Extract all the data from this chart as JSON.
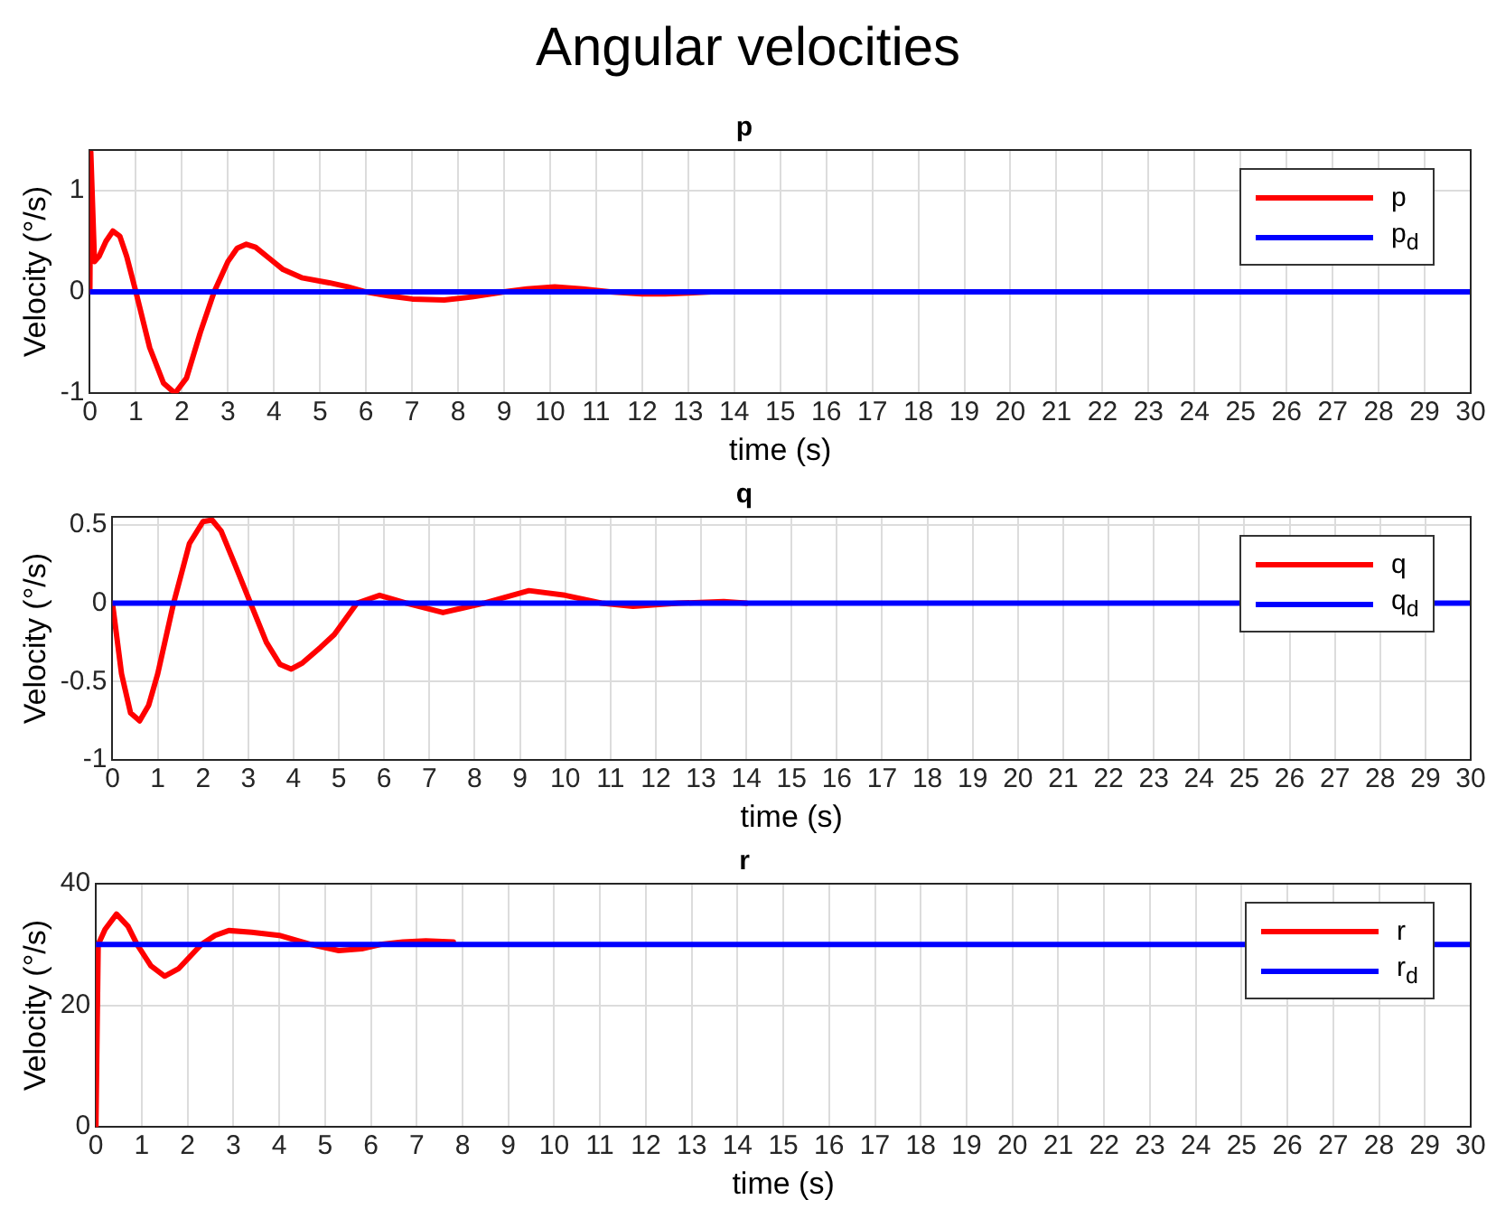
{
  "chart_data": [
    {
      "type": "line",
      "title": "Angular velocities",
      "subtitle": "p",
      "xlabel": "time (s)",
      "ylabel": "Velocity (°/s)",
      "xlim": [
        0,
        30
      ],
      "xticks": [
        0,
        1,
        2,
        3,
        4,
        5,
        6,
        7,
        8,
        9,
        10,
        11,
        12,
        13,
        14,
        15,
        16,
        17,
        18,
        19,
        20,
        21,
        22,
        23,
        24,
        25,
        26,
        27,
        28,
        29,
        30
      ],
      "ylim": [
        -1,
        1.4
      ],
      "yticks": [
        -1,
        0,
        1
      ],
      "grid": true,
      "legend": "top right",
      "series": [
        {
          "name": "p",
          "color": "#ff0000",
          "x": [
            0,
            0.02,
            0.1,
            0.2,
            0.35,
            0.5,
            0.65,
            0.8,
            1.0,
            1.3,
            1.6,
            1.85,
            2.1,
            2.4,
            2.7,
            3.0,
            3.2,
            3.4,
            3.6,
            3.9,
            4.2,
            4.6,
            5.2,
            5.6,
            6.0,
            6.5,
            7.0,
            7.7,
            8.3,
            9.0,
            9.5,
            10.1,
            10.7,
            11.3,
            12.0,
            12.5,
            13.0,
            13.5
          ],
          "values": [
            0,
            1.38,
            0.3,
            0.35,
            0.5,
            0.6,
            0.55,
            0.35,
            0,
            -0.55,
            -0.9,
            -1.0,
            -0.85,
            -0.4,
            0,
            0.3,
            0.43,
            0.47,
            0.44,
            0.33,
            0.22,
            0.14,
            0.09,
            0.05,
            0,
            -0.04,
            -0.07,
            -0.08,
            -0.05,
            0,
            0.03,
            0.05,
            0.03,
            0,
            -0.02,
            -0.02,
            -0.01,
            0
          ]
        },
        {
          "name": "p$_{d}$",
          "color": "#0000ff",
          "x": [
            0,
            30
          ],
          "values": [
            0,
            0
          ]
        }
      ]
    },
    {
      "type": "line",
      "subtitle": "q",
      "xlabel": "time (s)",
      "ylabel": "Velocity (°/s)",
      "xlim": [
        0,
        30
      ],
      "xticks": [
        0,
        1,
        2,
        3,
        4,
        5,
        6,
        7,
        8,
        9,
        10,
        11,
        12,
        13,
        14,
        15,
        16,
        17,
        18,
        19,
        20,
        21,
        22,
        23,
        24,
        25,
        26,
        27,
        28,
        29,
        30
      ],
      "ylim": [
        -1,
        0.55
      ],
      "yticks": [
        -1,
        -0.5,
        0,
        0.5
      ],
      "grid": true,
      "legend": "top right",
      "series": [
        {
          "name": "q",
          "color": "#ff0000",
          "x": [
            0,
            0.2,
            0.4,
            0.6,
            0.8,
            1.0,
            1.35,
            1.7,
            2.0,
            2.2,
            2.4,
            2.7,
            3.05,
            3.4,
            3.7,
            3.95,
            4.2,
            4.6,
            4.9,
            5.4,
            5.9,
            6.5,
            7.3,
            8.2,
            9.2,
            10.0,
            10.8,
            11.5,
            12.5,
            13.5,
            14
          ],
          "values": [
            0,
            -0.45,
            -0.7,
            -0.75,
            -0.65,
            -0.45,
            0,
            0.38,
            0.52,
            0.53,
            0.46,
            0.25,
            0,
            -0.25,
            -0.39,
            -0.42,
            -0.38,
            -0.28,
            -0.2,
            0,
            0.05,
            0,
            -0.06,
            0,
            0.08,
            0.05,
            0,
            -0.02,
            0,
            0.01,
            0
          ]
        },
        {
          "name": "q$_{d}$",
          "color": "#0000ff",
          "x": [
            0,
            30
          ],
          "values": [
            0,
            0
          ]
        }
      ]
    },
    {
      "type": "line",
      "subtitle": "r",
      "xlabel": "time (s)",
      "ylabel": "Velocity (°/s)",
      "xlim": [
        0,
        30
      ],
      "xticks": [
        0,
        1,
        2,
        3,
        4,
        5,
        6,
        7,
        8,
        9,
        10,
        11,
        12,
        13,
        14,
        15,
        16,
        17,
        18,
        19,
        20,
        21,
        22,
        23,
        24,
        25,
        26,
        27,
        28,
        29,
        30
      ],
      "ylim": [
        0,
        40
      ],
      "yticks": [
        0,
        20,
        40
      ],
      "grid": true,
      "legend": "top right",
      "series": [
        {
          "name": "r",
          "color": "#ff0000",
          "x": [
            0,
            0.05,
            0.2,
            0.45,
            0.7,
            0.9,
            1.2,
            1.5,
            1.8,
            2.3,
            2.6,
            2.9,
            3.4,
            4.0,
            4.7,
            5.3,
            5.8,
            6.2,
            6.7,
            7.2,
            7.8
          ],
          "values": [
            0,
            30,
            32.5,
            35,
            33,
            30,
            26.5,
            24.8,
            26,
            30,
            31.5,
            32.3,
            32,
            31.5,
            30,
            29,
            29.3,
            30,
            30.4,
            30.6,
            30.4
          ]
        },
        {
          "name": "r$_{d}$",
          "color": "#0000ff",
          "x": [
            0,
            30
          ],
          "values": [
            30,
            30
          ]
        }
      ]
    }
  ]
}
